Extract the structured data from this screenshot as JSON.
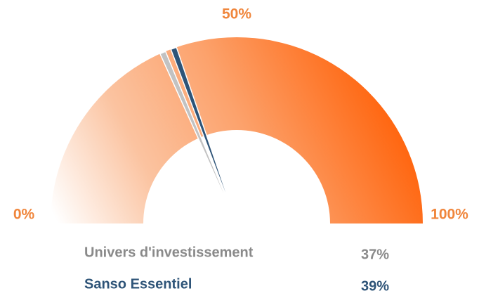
{
  "chart_data": {
    "type": "gauge",
    "ylim": [
      0,
      100
    ],
    "yticks": [
      {
        "value": 0,
        "label": "0%"
      },
      {
        "value": 50,
        "label": "50%"
      },
      {
        "value": 100,
        "label": "100%"
      }
    ],
    "series": [
      {
        "name": "Univers d'investissement",
        "color": "#c2c2c2",
        "values": [
          37
        ],
        "value_labels": [
          "37%"
        ]
      },
      {
        "name": "Sanso Essentiel",
        "color": "#2e5478",
        "values": [
          39
        ],
        "value_labels": [
          "39%"
        ]
      }
    ]
  }
}
